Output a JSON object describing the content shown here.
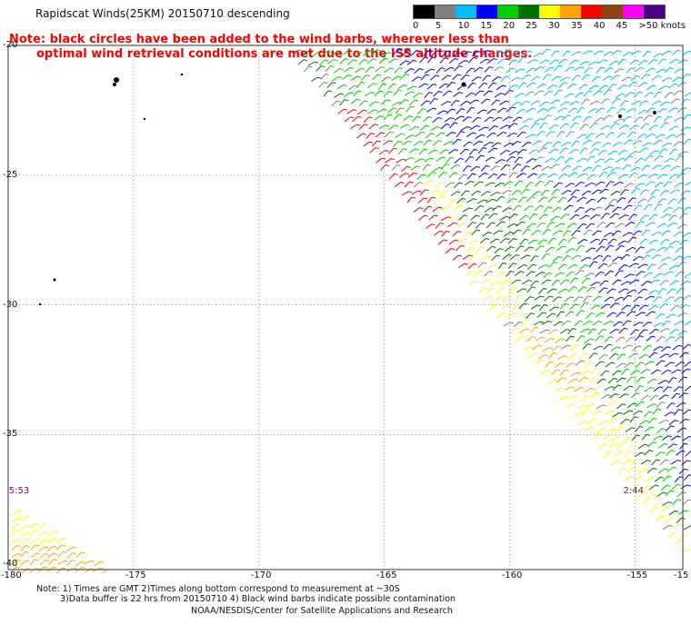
{
  "title": "Rapidscat Winds(25KM) 20150710 descending",
  "note_line1": "Note: black circles have been added to the wind barbs, wherever less than",
  "note_line2": "optimal wind retrieval conditions are met due to the ISS altitude changes.",
  "legend": {
    "labels": [
      "0",
      "5",
      "10",
      "15",
      "20",
      "25",
      "30",
      "35",
      "40",
      "45",
      ">50 knots"
    ],
    "colors": [
      "#000000",
      "#808080",
      "#00bfff",
      "#0000ff",
      "#00d000",
      "#007000",
      "#ffff00",
      "#ffa500",
      "#ff0000",
      "#8b4513",
      "#ff00ff",
      "#4b0082"
    ]
  },
  "map": {
    "lon_labels": [
      "-180",
      "-175",
      "-170",
      "-165",
      "-160",
      "-155",
      "-15"
    ],
    "lat_labels": [
      "-20",
      "-25",
      "-30",
      "-35",
      "-40"
    ],
    "lon_range": [
      -180,
      -153.1
    ],
    "lat_range": [
      -20,
      -40.2
    ],
    "time_labels": [
      {
        "text": "5:53",
        "lon": -179.9,
        "lat": -37.2
      },
      {
        "text": "2:44",
        "lon": -155.4,
        "lat": -37.2
      }
    ]
  },
  "footer": {
    "line1": "Note: 1) Times are GMT 2)Times along bottom correspond to measurement at ~30S",
    "line2": "3)Data buffer is 22 hrs from 20150710 4) Black wind barbs indicate possible contamination",
    "line3": "NOAA/NESDIS/Center for Satellite Applications and Research"
  }
}
